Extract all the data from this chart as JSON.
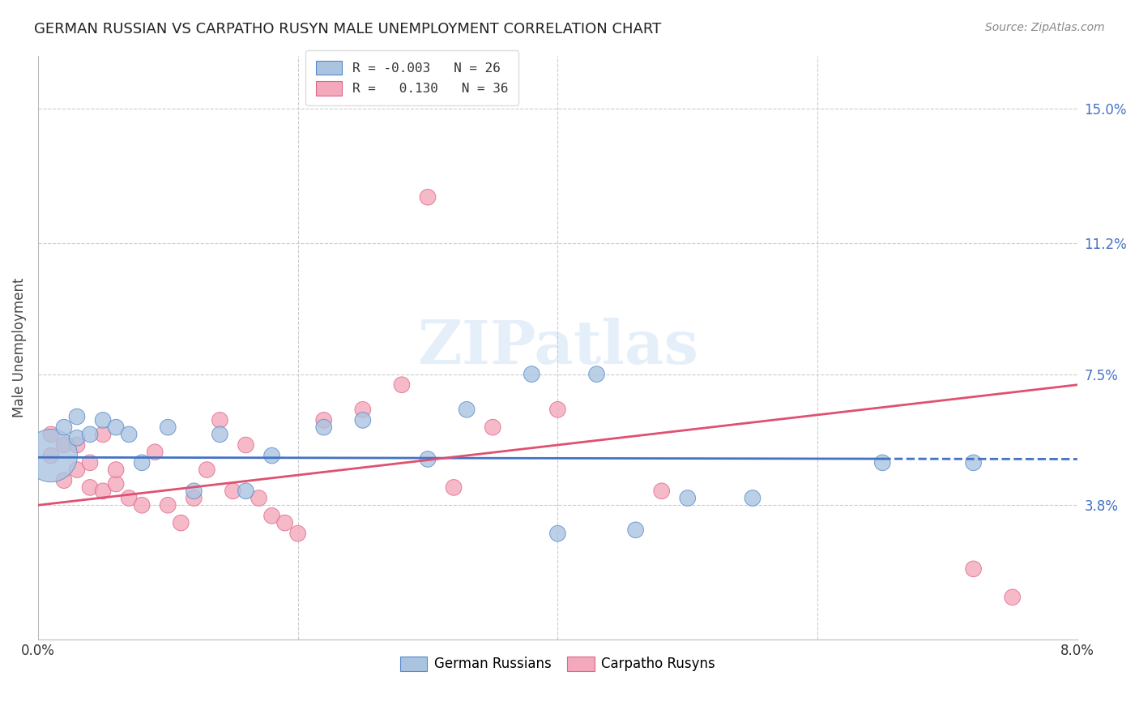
{
  "title": "GERMAN RUSSIAN VS CARPATHO RUSYN MALE UNEMPLOYMENT CORRELATION CHART",
  "source": "Source: ZipAtlas.com",
  "ylabel": "Male Unemployment",
  "ytick_labels": [
    "15.0%",
    "11.2%",
    "7.5%",
    "3.8%"
  ],
  "ytick_values": [
    0.15,
    0.112,
    0.075,
    0.038
  ],
  "xlim": [
    0.0,
    0.08
  ],
  "ylim": [
    0.0,
    0.165
  ],
  "watermark": "ZIPatlas",
  "blue_color": "#aac4e0",
  "pink_color": "#f4a8bb",
  "blue_edge_color": "#5588cc",
  "pink_edge_color": "#dd6688",
  "blue_line_color": "#4472c4",
  "pink_line_color": "#e05070",
  "german_russians": {
    "x": [
      0.001,
      0.002,
      0.003,
      0.003,
      0.004,
      0.005,
      0.006,
      0.007,
      0.008,
      0.01,
      0.012,
      0.014,
      0.016,
      0.018,
      0.022,
      0.025,
      0.03,
      0.033,
      0.038,
      0.04,
      0.043,
      0.046,
      0.05,
      0.055,
      0.065,
      0.072
    ],
    "y": [
      0.052,
      0.06,
      0.057,
      0.063,
      0.058,
      0.062,
      0.06,
      0.058,
      0.05,
      0.06,
      0.042,
      0.058,
      0.042,
      0.052,
      0.06,
      0.062,
      0.051,
      0.065,
      0.075,
      0.03,
      0.075,
      0.031,
      0.04,
      0.04,
      0.05,
      0.05
    ],
    "sizes": [
      2200,
      200,
      200,
      200,
      200,
      200,
      200,
      200,
      200,
      200,
      200,
      200,
      200,
      200,
      200,
      200,
      200,
      200,
      200,
      200,
      200,
      200,
      200,
      200,
      200,
      200
    ]
  },
  "carpatho_rusyns": {
    "x": [
      0.001,
      0.001,
      0.002,
      0.002,
      0.003,
      0.003,
      0.004,
      0.004,
      0.005,
      0.005,
      0.006,
      0.006,
      0.007,
      0.008,
      0.009,
      0.01,
      0.011,
      0.012,
      0.013,
      0.014,
      0.015,
      0.016,
      0.017,
      0.018,
      0.019,
      0.02,
      0.022,
      0.025,
      0.028,
      0.03,
      0.032,
      0.035,
      0.04,
      0.048,
      0.072,
      0.075
    ],
    "y": [
      0.052,
      0.058,
      0.045,
      0.055,
      0.048,
      0.055,
      0.043,
      0.05,
      0.042,
      0.058,
      0.044,
      0.048,
      0.04,
      0.038,
      0.053,
      0.038,
      0.033,
      0.04,
      0.048,
      0.062,
      0.042,
      0.055,
      0.04,
      0.035,
      0.033,
      0.03,
      0.062,
      0.065,
      0.072,
      0.125,
      0.043,
      0.06,
      0.065,
      0.042,
      0.02,
      0.012
    ]
  },
  "gr_trend": [
    0.0515,
    0.051
  ],
  "cr_trend_start": 0.038,
  "cr_trend_end": 0.072
}
